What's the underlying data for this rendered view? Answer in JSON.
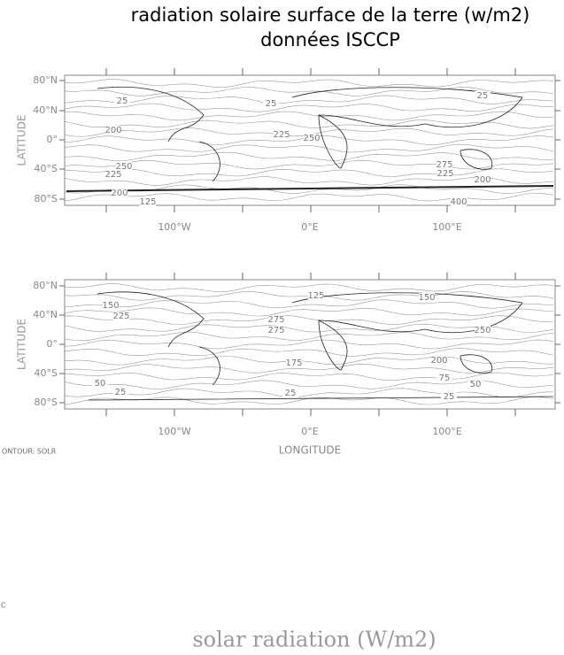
{
  "title": [
    "radiation solaire surface de la terre (w/m2)",
    "données ISCCP"
  ],
  "panels": [
    {
      "y_axis_label": "LATITUDE",
      "y_ticks": [
        "80°N",
        "40°N",
        "0°",
        "40°S",
        "80°S"
      ],
      "x_ticks": [
        "100°W",
        "0°E",
        "100°E"
      ],
      "contour_labels": [
        "25",
        "25",
        "25",
        "200",
        "225",
        "250",
        "250",
        "225",
        "275",
        "225",
        "200",
        "200",
        "125",
        "400"
      ]
    },
    {
      "y_axis_label": "LATITUDE",
      "y_ticks": [
        "80°N",
        "40°N",
        "0°",
        "40°S",
        "80°S"
      ],
      "x_ticks": [
        "100°W",
        "0°E",
        "100°E"
      ],
      "contour_labels": [
        "125",
        "150",
        "150",
        "225",
        "275",
        "275",
        "250",
        "175",
        "200",
        "75",
        "50",
        "50",
        "25",
        "25",
        "25"
      ]
    }
  ],
  "x_axis_label": "LONGITUDE",
  "contour_note": "ONTOUR: SOLR",
  "corner_mark": "C",
  "caption": "solar radiation (W/m2)"
}
